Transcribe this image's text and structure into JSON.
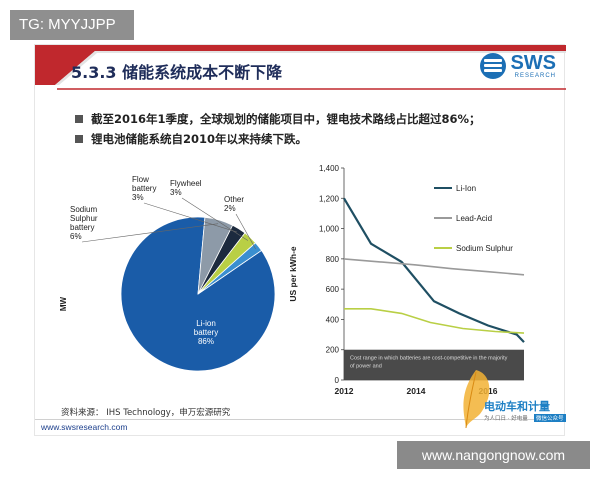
{
  "watermark_top": "TG: MYYJJPP",
  "watermark_bottom": "www.nangongnow.com",
  "slide": {
    "title": "5.3.3 储能系统成本不断下降",
    "brand": {
      "name": "SWS",
      "sub": "RESEARCH"
    },
    "bullets": [
      "截至2016年1季度，全球规划的储能项目中，锂电技术路线占比超过86%；",
      "锂电池储能系统自2010年以来持续下跌。"
    ],
    "source": "资料来源：  IHS Technology，申万宏源研究",
    "website": "www.swsresearch.com",
    "logo_text": "电动车和计量",
    "logo_sub": "为人口日 · 好电量",
    "logo_tag": "微信公众号",
    "colors": {
      "accent_red": "#c0282d",
      "title_blue": "#1f2d5a",
      "brand_blue": "#1c6fb5"
    }
  },
  "chart_data": [
    {
      "type": "pie",
      "ylabel": "MW",
      "slices": [
        {
          "label_lines": [
            "Li-ion",
            "battery",
            "86%"
          ],
          "value": 86,
          "color": "#1a5ca8"
        },
        {
          "label_lines": [
            "Sodium",
            "Sulphur",
            "battery",
            "6%"
          ],
          "value": 6,
          "color": "#8d9aa8"
        },
        {
          "label_lines": [
            "Flow",
            "battery",
            "3%"
          ],
          "value": 3,
          "color": "#1c2a3e"
        },
        {
          "label_lines": [
            "Flywheel",
            "3%"
          ],
          "value": 3,
          "color": "#b9cf45"
        },
        {
          "label_lines": [
            "Other",
            "2%"
          ],
          "value": 2,
          "color": "#3a8fd0"
        }
      ]
    },
    {
      "type": "line",
      "ylabel": "US per kWh-e",
      "ylim": [
        0,
        1400
      ],
      "xlim": [
        2012,
        2017
      ],
      "yticks": [
        "0",
        "200",
        "400",
        "600",
        "800",
        "1,000",
        "1,200",
        "1,400"
      ],
      "xticks": [
        "2012",
        "2014",
        "2016"
      ],
      "grid": false,
      "legend": "top-right",
      "annotation": "Cost range in which batteries are cost-competitive in the majority of power and",
      "shaded_range": [
        0,
        200
      ],
      "series": [
        {
          "name": "Li-Ion",
          "color": "#1f4f63",
          "x": [
            2012,
            2012.75,
            2013.6,
            2014.5,
            2015.2,
            2016,
            2016.8,
            2017
          ],
          "y": [
            1200,
            900,
            780,
            520,
            440,
            360,
            300,
            250
          ]
        },
        {
          "name": "Lead-Acid",
          "color": "#9a9a9a",
          "x": [
            2012,
            2013,
            2014,
            2015,
            2016,
            2017
          ],
          "y": [
            800,
            780,
            760,
            735,
            715,
            695
          ]
        },
        {
          "name": "Sodium Sulphur",
          "color": "#b9cf45",
          "x": [
            2012,
            2012.75,
            2013.6,
            2014.4,
            2015.3,
            2016.2,
            2017
          ],
          "y": [
            470,
            470,
            440,
            380,
            340,
            320,
            310
          ]
        }
      ]
    }
  ]
}
